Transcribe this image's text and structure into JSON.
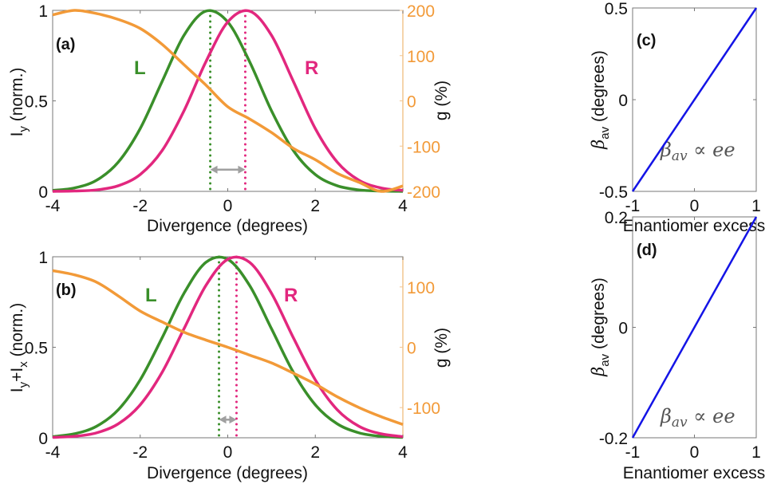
{
  "colors": {
    "L": "#3a8f2a",
    "R": "#e2277e",
    "g": "#f29a38",
    "beta": "#1414e6",
    "arrow": "#a0a0a0",
    "axis": "#777777"
  },
  "chart_data": [
    {
      "id": "a",
      "type": "line",
      "panel_label": "(a)",
      "xlabel": "Divergence (degrees)",
      "ylabel_main": "I",
      "ylabel_sub": "y",
      "ylabel_rest": " (norm.)",
      "ylabel_right": "g (%)",
      "xlim": [
        -4,
        4
      ],
      "ylim": [
        0,
        1
      ],
      "ylim_right": [
        -200,
        200
      ],
      "xticks": [
        -4,
        -2,
        0,
        2,
        4
      ],
      "yticks": [
        0,
        0.5,
        1
      ],
      "yticks_right": [
        -200,
        -100,
        0,
        100,
        200
      ],
      "x": [
        -4,
        -3.5,
        -3,
        -2.5,
        -2,
        -1.5,
        -1,
        -0.5,
        0,
        0.5,
        1,
        1.5,
        2,
        2.5,
        3,
        3.5,
        4
      ],
      "series": [
        {
          "name": "L",
          "axis": "left",
          "values": [
            0.005,
            0.019,
            0.061,
            0.162,
            0.347,
            0.607,
            0.862,
            0.996,
            0.936,
            0.716,
            0.445,
            0.225,
            0.093,
            0.031,
            0.008,
            0.002,
            0
          ]
        },
        {
          "name": "R",
          "axis": "left",
          "values": [
            0,
            0.002,
            0.008,
            0.031,
            0.093,
            0.225,
            0.445,
            0.716,
            0.936,
            0.996,
            0.862,
            0.607,
            0.347,
            0.162,
            0.061,
            0.019,
            0.005
          ]
        },
        {
          "axis": "right",
          "values": [
            190,
            200,
            193,
            180,
            160,
            125,
            80,
            35,
            -13,
            -40,
            -70,
            -105,
            -130,
            -160,
            -180,
            -200,
            -188
          ]
        }
      ],
      "peak_markers": [
        {
          "series": "L",
          "x": -0.4
        },
        {
          "series": "R",
          "x": 0.4
        }
      ],
      "arrow": {
        "from": -0.4,
        "to": 0.4,
        "y": 0.12
      }
    },
    {
      "id": "b",
      "type": "line",
      "panel_label": "(b)",
      "xlabel": "Divergence (degrees)",
      "ylabel_main": "I",
      "ylabel_sub": "y",
      "ylabel_mid": "+I",
      "ylabel_sub2": "x",
      "ylabel_rest": " (norm.)",
      "ylabel_right": "g (%)",
      "xlim": [
        -4,
        4
      ],
      "ylim": [
        0,
        1
      ],
      "ylim_right": [
        -150,
        150
      ],
      "xticks": [
        -4,
        -2,
        0,
        2,
        4
      ],
      "yticks": [
        0,
        0.5,
        1
      ],
      "yticks_right": [
        -100,
        0,
        100
      ],
      "x": [
        -4,
        -3.5,
        -3,
        -2.5,
        -2,
        -1.5,
        -1,
        -0.5,
        0,
        0.5,
        1,
        1.5,
        2,
        2.5,
        3,
        3.5,
        4
      ],
      "series": [
        {
          "name": "L",
          "axis": "left",
          "values": [
            0.006,
            0.022,
            0.063,
            0.155,
            0.32,
            0.552,
            0.798,
            0.969,
            0.986,
            0.841,
            0.602,
            0.361,
            0.182,
            0.077,
            0.027,
            0.008,
            0.002
          ]
        },
        {
          "name": "R",
          "axis": "left",
          "values": [
            0.002,
            0.008,
            0.027,
            0.077,
            0.182,
            0.361,
            0.602,
            0.841,
            0.986,
            0.969,
            0.798,
            0.552,
            0.32,
            0.155,
            0.063,
            0.022,
            0.006
          ]
        },
        {
          "axis": "right",
          "values": [
            127,
            120,
            108,
            85,
            60,
            42,
            25,
            12,
            0,
            -13,
            -26,
            -43,
            -61,
            -82,
            -100,
            -115,
            -128
          ]
        }
      ],
      "peak_markers": [
        {
          "series": "L",
          "x": -0.2
        },
        {
          "series": "R",
          "x": 0.2
        }
      ],
      "arrow": {
        "from": -0.2,
        "to": 0.2,
        "y": 0.1
      }
    },
    {
      "id": "c",
      "type": "line",
      "panel_label": "(c)",
      "xlabel": "Enantiomer excess",
      "ylabel_main": "β",
      "ylabel_sub": "av",
      "ylabel_rest": " (degrees)",
      "annotation": "β",
      "annotation_sub": "av",
      "annotation_rest": " ∝ ee",
      "xlim": [
        -1,
        1
      ],
      "ylim": [
        -0.5,
        0.5
      ],
      "xticks": [
        -1,
        0,
        1
      ],
      "yticks": [
        -0.5,
        0,
        0.5
      ],
      "x": [
        -1,
        1
      ],
      "series": [
        {
          "values": [
            -0.5,
            0.5
          ]
        }
      ]
    },
    {
      "id": "d",
      "type": "line",
      "panel_label": "(d)",
      "xlabel": "Enantiomer excess",
      "ylabel_main": "β",
      "ylabel_sub": "av",
      "ylabel_rest": " (degrees)",
      "annotation": "β",
      "annotation_sub": "av",
      "annotation_rest": " ∝ ee",
      "xlim": [
        -1,
        1
      ],
      "ylim": [
        -0.2,
        0.2
      ],
      "xticks": [
        -1,
        0,
        1
      ],
      "yticks": [
        -0.2,
        0,
        0.2
      ],
      "x": [
        -1,
        1
      ],
      "series": [
        {
          "values": [
            -0.2,
            0.2
          ]
        }
      ]
    }
  ]
}
